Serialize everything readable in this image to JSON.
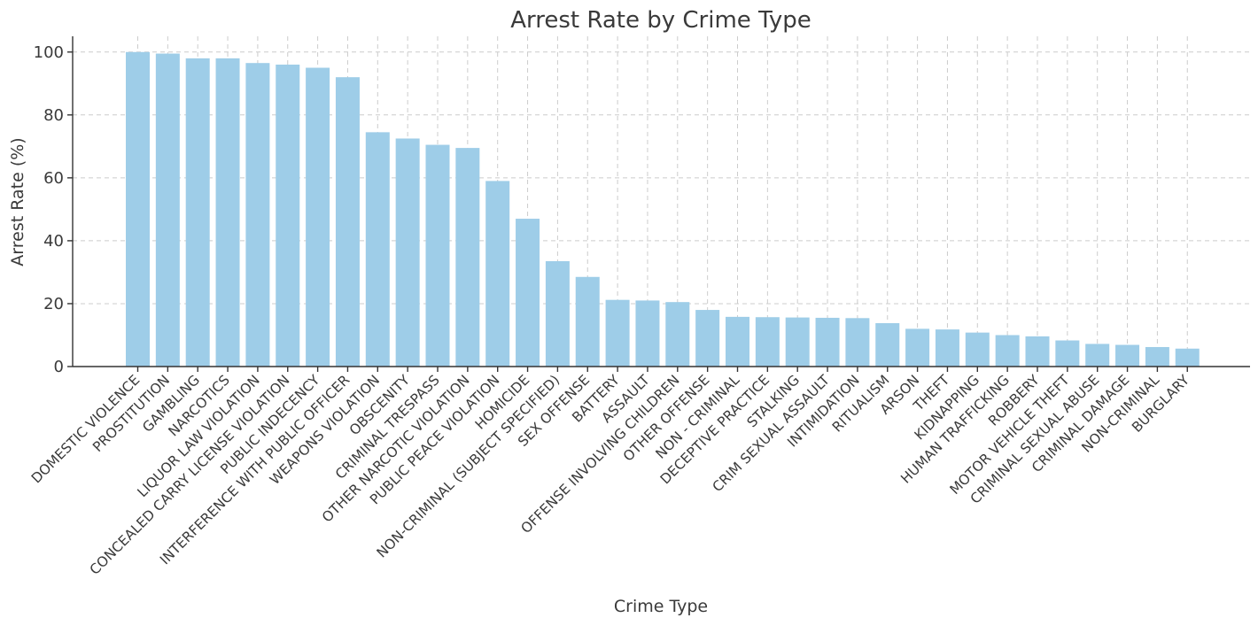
{
  "chart_data": {
    "type": "bar",
    "title": "Arrest Rate by Crime Type",
    "xlabel": "Crime Type",
    "ylabel": "Arrest Rate (%)",
    "ylim": [
      0,
      105
    ],
    "yticks": [
      0,
      20,
      40,
      60,
      80,
      100
    ],
    "grid": true,
    "bar_color": "#9ecde8",
    "categories": [
      "DOMESTIC VIOLENCE",
      "PROSTITUTION",
      "GAMBLING",
      "NARCOTICS",
      "LIQUOR LAW VIOLATION",
      "CONCEALED CARRY LICENSE VIOLATION",
      "PUBLIC INDECENCY",
      "INTERFERENCE WITH PUBLIC OFFICER",
      "WEAPONS VIOLATION",
      "OBSCENITY",
      "CRIMINAL TRESPASS",
      "OTHER NARCOTIC VIOLATION",
      "PUBLIC PEACE VIOLATION",
      "HOMICIDE",
      "NON-CRIMINAL (SUBJECT SPECIFIED)",
      "SEX OFFENSE",
      "BATTERY",
      "ASSAULT",
      "OFFENSE INVOLVING CHILDREN",
      "OTHER OFFENSE",
      "NON - CRIMINAL",
      "DECEPTIVE PRACTICE",
      "STALKING",
      "CRIM SEXUAL ASSAULT",
      "INTIMIDATION",
      "RITUALISM",
      "ARSON",
      "THEFT",
      "KIDNAPPING",
      "HUMAN TRAFFICKING",
      "ROBBERY",
      "MOTOR VEHICLE THEFT",
      "CRIMINAL SEXUAL ABUSE",
      "CRIMINAL DAMAGE",
      "NON-CRIMINAL",
      "BURGLARY"
    ],
    "values": [
      100,
      99.5,
      98,
      98,
      96.5,
      96,
      95,
      92,
      74.5,
      72.5,
      70.5,
      69.5,
      59,
      47,
      33.5,
      28.5,
      21.2,
      21,
      20.5,
      18,
      15.8,
      15.7,
      15.6,
      15.5,
      15.4,
      13.8,
      12,
      11.8,
      10.8,
      10,
      9.6,
      8.3,
      7.2,
      6.9,
      6.2,
      5.7
    ]
  }
}
